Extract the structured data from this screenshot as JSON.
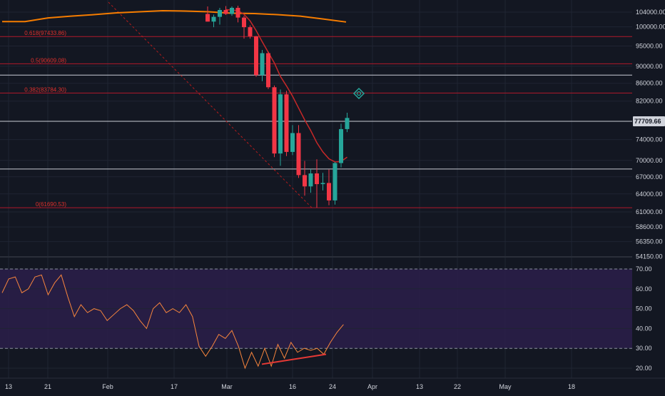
{
  "colors": {
    "background": "#131722",
    "grid": "#1f2433",
    "axis_text": "#d1d4dc",
    "candle_up": "#26a69a",
    "candle_down": "#f23645",
    "fib_line": "#b2182b",
    "horizontal_line": "#c9ccd4",
    "ma_long": "#f57c00",
    "ma_short": "#c62828",
    "trendline": "#b71c1c",
    "rsi_line": "#f7853d",
    "rsi_band": "#2b1e4a",
    "divergence_line": "#e53935",
    "crosshair_target": "#26a69a",
    "price_tag": "#d1d4dc"
  },
  "icons": {
    "target": "crosshair-target-icon"
  },
  "chart_data": [
    {
      "type": "candlestick",
      "panel": "price",
      "y_scale": "log",
      "ylim": [
        54150,
        106000
      ],
      "y_ticks": [
        "104000.00",
        "100000.00",
        "95000.00",
        "90000.00",
        "86000.00",
        "82000.00",
        "77709.66",
        "74000.00",
        "70000.00",
        "67000.00",
        "64000.00",
        "61000.00",
        "58600.00",
        "56350.00",
        "54150.00"
      ],
      "current_price_label": "77709.66",
      "x_ticks": [
        "13",
        "21",
        "Feb",
        "17",
        "Mar",
        "16",
        "24",
        "Apr",
        "13",
        "22",
        "May",
        "18"
      ],
      "candles": [
        {
          "open": 103500,
          "high": 105600,
          "low": 101400,
          "close": 101400
        },
        {
          "open": 101400,
          "high": 103300,
          "low": 99900,
          "close": 102700
        },
        {
          "open": 102700,
          "high": 105200,
          "low": 100600,
          "close": 104600
        },
        {
          "open": 104600,
          "high": 105700,
          "low": 103200,
          "close": 103500
        },
        {
          "open": 103500,
          "high": 105600,
          "low": 103000,
          "close": 105200
        },
        {
          "open": 105200,
          "high": 105800,
          "low": 101200,
          "close": 102500
        },
        {
          "open": 102500,
          "high": 103000,
          "low": 96900,
          "close": 99900
        },
        {
          "open": 99900,
          "high": 100400,
          "low": 96900,
          "close": 97500
        },
        {
          "open": 97500,
          "high": 97600,
          "low": 87500,
          "close": 87900
        },
        {
          "open": 87900,
          "high": 94000,
          "low": 86500,
          "close": 93200
        },
        {
          "open": 93200,
          "high": 93600,
          "low": 84700,
          "close": 85100
        },
        {
          "open": 85100,
          "high": 85500,
          "low": 70600,
          "close": 71300
        },
        {
          "open": 71300,
          "high": 84600,
          "low": 69000,
          "close": 83500
        },
        {
          "open": 83500,
          "high": 84300,
          "low": 70800,
          "close": 71600
        },
        {
          "open": 71600,
          "high": 76900,
          "low": 71000,
          "close": 75300
        },
        {
          "open": 75300,
          "high": 76900,
          "low": 66800,
          "close": 67300
        },
        {
          "open": 67300,
          "high": 69900,
          "low": 63700,
          "close": 65300
        },
        {
          "open": 65300,
          "high": 68400,
          "low": 64200,
          "close": 67600
        },
        {
          "open": 67600,
          "high": 70200,
          "low": 61690,
          "close": 65700
        },
        {
          "open": 65700,
          "high": 67700,
          "low": 64600,
          "close": 65900
        },
        {
          "open": 65900,
          "high": 68300,
          "low": 62100,
          "close": 62900
        },
        {
          "open": 62900,
          "high": 69700,
          "low": 62200,
          "close": 69500
        },
        {
          "open": 69500,
          "high": 77200,
          "low": 68700,
          "close": 76100
        },
        {
          "open": 76100,
          "high": 79500,
          "low": 75500,
          "close": 78400
        }
      ],
      "fib_levels": [
        {
          "label": "0.618(97433.86)",
          "value": 97433.86
        },
        {
          "label": "0.5(90609.08)",
          "value": 90609.08
        },
        {
          "label": "0.382(83784.30)",
          "value": 83784.3
        },
        {
          "label": "0(61690.53)",
          "value": 61690.53
        }
      ],
      "horizontal_lines": [
        87900,
        77709.66,
        68400
      ],
      "ma_long": [
        [
          101400,
          101600
        ],
        [
          101400,
          101800
        ],
        [
          102400,
          102500
        ],
        [
          102900,
          103200
        ],
        [
          103300,
          103700
        ],
        [
          103800,
          104100
        ],
        [
          104100,
          104300
        ],
        [
          104400,
          104500
        ],
        [
          104300,
          104100
        ],
        [
          104100,
          103900
        ],
        [
          103700,
          103400
        ],
        [
          103600,
          103400
        ],
        [
          103300,
          103200
        ],
        [
          102900,
          102500
        ],
        [
          102100,
          101700
        ],
        [
          101300,
          100800
        ]
      ],
      "ma_short_points": [
        [
          104700
        ],
        [
          104600
        ],
        [
          104400
        ],
        [
          103400
        ],
        [
          101600
        ],
        [
          99000
        ],
        [
          96100
        ],
        [
          93400
        ],
        [
          90800
        ],
        [
          87600
        ],
        [
          85400
        ],
        [
          83100
        ],
        [
          80500
        ],
        [
          78000
        ],
        [
          75800
        ],
        [
          73400
        ],
        [
          71600
        ],
        [
          70300
        ],
        [
          69700
        ],
        [
          69800
        ],
        [
          70600
        ]
      ],
      "trendline": {
        "from": 106800,
        "to": 61690.53
      }
    },
    {
      "type": "line",
      "panel": "rsi",
      "ylim": [
        15,
        75
      ],
      "y_ticks": [
        "70.00",
        "60.00",
        "50.00",
        "40.00",
        "30.00",
        "20.00"
      ],
      "bands": [
        70,
        30
      ],
      "values": [
        58,
        65,
        66,
        58,
        60,
        66,
        67,
        57,
        63,
        67,
        56,
        46,
        52,
        48,
        50,
        49,
        44,
        47,
        50,
        52,
        49,
        44,
        40,
        50,
        53,
        48,
        50,
        48,
        52,
        46,
        31,
        26,
        31,
        37,
        35,
        39,
        31,
        20,
        28,
        21,
        30,
        21,
        32,
        25,
        33,
        28,
        30,
        29,
        30,
        27,
        33,
        38,
        42
      ],
      "divergence": [
        22,
        27
      ]
    }
  ]
}
